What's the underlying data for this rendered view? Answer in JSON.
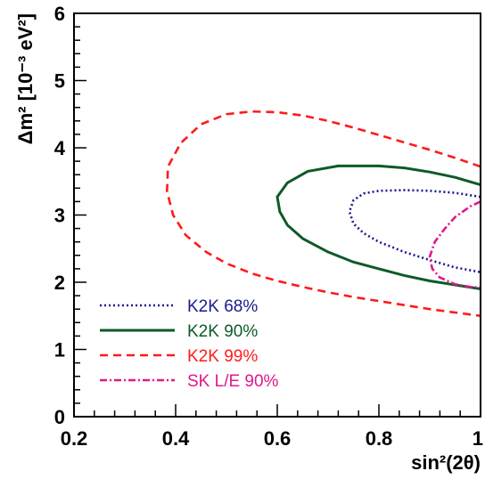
{
  "chart_data": {
    "type": "line",
    "xlabel": "sin²(2θ)",
    "ylabel": "Δm² [10⁻³ eV²]",
    "xlim": [
      0.2,
      1.0
    ],
    "ylim": [
      0,
      6
    ],
    "x_ticks": [
      "0.2",
      "0.4",
      "0.6",
      "0.8",
      "1"
    ],
    "y_ticks": [
      "0",
      "1",
      "2",
      "3",
      "4",
      "5",
      "6"
    ],
    "legend_position": "bottom-left",
    "series": [
      {
        "name": "K2K 68%",
        "color": "#1a1a8c",
        "style": "dotted",
        "points": [
          [
            1.0,
            3.27
          ],
          [
            0.95,
            3.33
          ],
          [
            0.9,
            3.36
          ],
          [
            0.85,
            3.37
          ],
          [
            0.8,
            3.36
          ],
          [
            0.77,
            3.32
          ],
          [
            0.75,
            3.22
          ],
          [
            0.742,
            3.05
          ],
          [
            0.75,
            2.87
          ],
          [
            0.77,
            2.73
          ],
          [
            0.8,
            2.6
          ],
          [
            0.85,
            2.45
          ],
          [
            0.9,
            2.33
          ],
          [
            0.95,
            2.22
          ],
          [
            1.0,
            2.15
          ]
        ]
      },
      {
        "name": "K2K 90%",
        "color": "#0e5a28",
        "style": "solid",
        "points": [
          [
            1.0,
            3.45
          ],
          [
            0.95,
            3.56
          ],
          [
            0.9,
            3.64
          ],
          [
            0.85,
            3.7
          ],
          [
            0.8,
            3.73
          ],
          [
            0.72,
            3.73
          ],
          [
            0.66,
            3.65
          ],
          [
            0.62,
            3.48
          ],
          [
            0.6,
            3.27
          ],
          [
            0.605,
            3.05
          ],
          [
            0.62,
            2.85
          ],
          [
            0.65,
            2.65
          ],
          [
            0.7,
            2.45
          ],
          [
            0.75,
            2.3
          ],
          [
            0.8,
            2.2
          ],
          [
            0.85,
            2.1
          ],
          [
            0.9,
            2.02
          ],
          [
            0.95,
            1.96
          ],
          [
            1.0,
            1.9
          ]
        ]
      },
      {
        "name": "K2K 99%",
        "color": "#ff1a1a",
        "style": "dashed",
        "points": [
          [
            1.0,
            3.72
          ],
          [
            0.95,
            3.85
          ],
          [
            0.9,
            3.97
          ],
          [
            0.85,
            4.08
          ],
          [
            0.8,
            4.19
          ],
          [
            0.75,
            4.3
          ],
          [
            0.7,
            4.4
          ],
          [
            0.65,
            4.48
          ],
          [
            0.6,
            4.53
          ],
          [
            0.55,
            4.54
          ],
          [
            0.5,
            4.5
          ],
          [
            0.45,
            4.35
          ],
          [
            0.41,
            4.07
          ],
          [
            0.385,
            3.72
          ],
          [
            0.383,
            3.35
          ],
          [
            0.395,
            3.0
          ],
          [
            0.42,
            2.7
          ],
          [
            0.46,
            2.45
          ],
          [
            0.5,
            2.28
          ],
          [
            0.55,
            2.13
          ],
          [
            0.6,
            2.02
          ],
          [
            0.65,
            1.93
          ],
          [
            0.7,
            1.85
          ],
          [
            0.75,
            1.78
          ],
          [
            0.8,
            1.72
          ],
          [
            0.85,
            1.66
          ],
          [
            0.9,
            1.6
          ],
          [
            0.95,
            1.55
          ],
          [
            1.0,
            1.5
          ]
        ]
      },
      {
        "name": "SK L/E 90%",
        "color": "#e0188c",
        "style": "dashdot",
        "points": [
          [
            1.0,
            3.2
          ],
          [
            0.98,
            3.13
          ],
          [
            0.95,
            2.97
          ],
          [
            0.93,
            2.8
          ],
          [
            0.91,
            2.6
          ],
          [
            0.9,
            2.38
          ],
          [
            0.905,
            2.2
          ],
          [
            0.92,
            2.07
          ],
          [
            0.95,
            1.97
          ],
          [
            0.98,
            1.93
          ],
          [
            1.0,
            1.92
          ]
        ]
      }
    ]
  }
}
